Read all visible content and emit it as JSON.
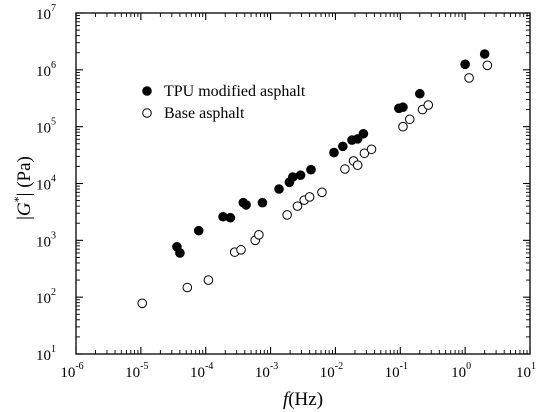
{
  "chart_data": {
    "type": "scatter",
    "x_scale": "log",
    "y_scale": "log",
    "xlim": [
      1e-06,
      10
    ],
    "ylim": [
      10,
      10000000.0
    ],
    "x_ticks": [
      {
        "base": "10",
        "exp": "-6",
        "value": 1e-06
      },
      {
        "base": "10",
        "exp": "-5",
        "value": 1e-05
      },
      {
        "base": "10",
        "exp": "-4",
        "value": 0.0001
      },
      {
        "base": "10",
        "exp": "-3",
        "value": 0.001
      },
      {
        "base": "10",
        "exp": "-2",
        "value": 0.01
      },
      {
        "base": "10",
        "exp": "-1",
        "value": 0.1
      },
      {
        "base": "10",
        "exp": "0",
        "value": 1
      },
      {
        "base": "10",
        "exp": "1",
        "value": 10
      }
    ],
    "y_ticks": [
      {
        "base": "10",
        "exp": "1",
        "value": 10
      },
      {
        "base": "10",
        "exp": "2",
        "value": 100
      },
      {
        "base": "10",
        "exp": "3",
        "value": 1000
      },
      {
        "base": "10",
        "exp": "4",
        "value": 10000
      },
      {
        "base": "10",
        "exp": "5",
        "value": 100000
      },
      {
        "base": "10",
        "exp": "6",
        "value": 1000000
      },
      {
        "base": "10",
        "exp": "7",
        "value": 10000000
      }
    ],
    "xlabel": {
      "italic": "f",
      "rest": "(Hz)"
    },
    "ylabel": {
      "prefix": "|",
      "italic": "G",
      "sup": "*",
      "rest": "| (Pa)"
    },
    "legend": {
      "position": "top-left"
    },
    "grid": false,
    "series": [
      {
        "name": "TPU modified asphalt",
        "marker": "filled-circle",
        "color": "#000000",
        "points": [
          [
            3.6e-05,
            770
          ],
          [
            4e-05,
            600
          ],
          [
            7.8e-05,
            1480
          ],
          [
            0.000185,
            2600
          ],
          [
            0.00024,
            2500
          ],
          [
            0.00038,
            4600
          ],
          [
            0.00042,
            4200
          ],
          [
            0.00075,
            4600
          ],
          [
            0.00135,
            8000
          ],
          [
            0.00195,
            10500
          ],
          [
            0.0022,
            13000
          ],
          [
            0.0029,
            14000
          ],
          [
            0.0042,
            17500
          ],
          [
            0.0095,
            35000
          ],
          [
            0.013,
            45000
          ],
          [
            0.018,
            58000
          ],
          [
            0.022,
            61000
          ],
          [
            0.027,
            75000
          ],
          [
            0.095,
            210000
          ],
          [
            0.11,
            220000
          ],
          [
            0.2,
            380000
          ],
          [
            1.0,
            1250000
          ],
          [
            2.0,
            1900000
          ]
        ]
      },
      {
        "name": "Base asphalt",
        "marker": "open-circle",
        "color": "#000000",
        "points": [
          [
            1.05e-05,
            78
          ],
          [
            5.2e-05,
            148
          ],
          [
            0.00011,
            200
          ],
          [
            0.00028,
            620
          ],
          [
            0.00035,
            680
          ],
          [
            0.00058,
            1000
          ],
          [
            0.00066,
            1250
          ],
          [
            0.0018,
            2800
          ],
          [
            0.0026,
            4000
          ],
          [
            0.0033,
            5100
          ],
          [
            0.004,
            5800
          ],
          [
            0.0062,
            7000
          ],
          [
            0.014,
            18000
          ],
          [
            0.019,
            25000
          ],
          [
            0.022,
            21000
          ],
          [
            0.028,
            34000
          ],
          [
            0.036,
            40000
          ],
          [
            0.11,
            100000
          ],
          [
            0.14,
            135000
          ],
          [
            0.22,
            200000
          ],
          [
            0.27,
            240000
          ],
          [
            1.15,
            720000
          ],
          [
            2.2,
            1200000
          ]
        ]
      }
    ]
  }
}
